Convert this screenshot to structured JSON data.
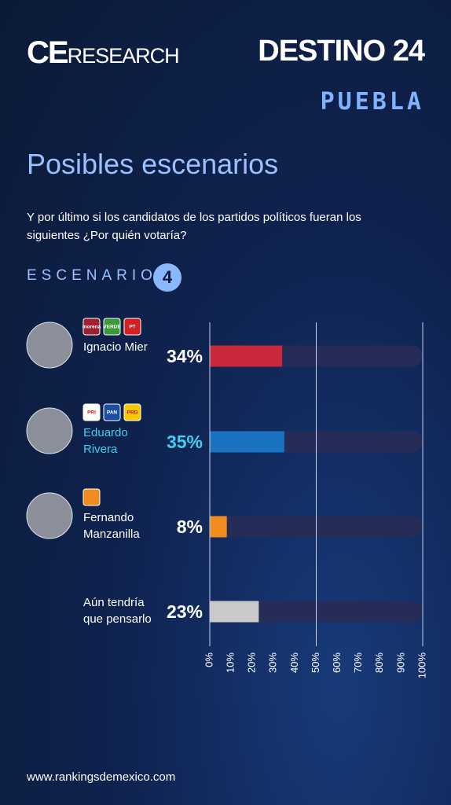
{
  "header": {
    "brand_bold": "CE",
    "brand_light": "RESEARCH",
    "campaign": "DESTINO 24",
    "region": "PUEBLA"
  },
  "chart_data": {
    "type": "bar",
    "orientation": "horizontal",
    "title": "Posibles escenarios",
    "subtitle": "Y por último si los candidatos de los partidos políticos fueran los siguientes ¿Por quién votaría?",
    "badge_label": "ESCENARIO",
    "badge_number": 4,
    "categories": [
      "Ignacio Mier",
      "Eduardo Rivera",
      "Fernando Manzanilla",
      "Aún tendría que pensarlo"
    ],
    "values": [
      34,
      35,
      8,
      23
    ],
    "value_labels": [
      "34%",
      "35%",
      "8%",
      "23%"
    ],
    "colors": [
      "#c8283a",
      "#1a73c0",
      "#f08c1e",
      "#c9c9c9"
    ],
    "label_colors": [
      "#ffffff",
      "#3fd0f0",
      "#ffffff",
      "#ffffff"
    ],
    "track_color": "#262c58",
    "parties": [
      [
        {
          "label": "morena",
          "color": "#a02030"
        },
        {
          "label": "VERDE",
          "color": "#3a9a3a"
        },
        {
          "label": "PT",
          "color": "#d42020"
        }
      ],
      [
        {
          "label": "PRI",
          "color": "#ffffff"
        },
        {
          "label": "PAN",
          "color": "#1a4fa0"
        },
        {
          "label": "PRD",
          "color": "#f5c800"
        }
      ],
      [
        {
          "color": "#f08c1e"
        }
      ],
      []
    ],
    "xlim": [
      0,
      100
    ],
    "xticks": [
      {
        "value": 0,
        "label": "0%"
      },
      {
        "value": 10,
        "label": "10%"
      },
      {
        "value": 20,
        "label": "20%"
      },
      {
        "value": 30,
        "label": "30%"
      },
      {
        "value": 40,
        "label": "40%"
      },
      {
        "value": 50,
        "label": "50%"
      },
      {
        "value": 60,
        "label": "60%"
      },
      {
        "value": 70,
        "label": "70%"
      },
      {
        "value": 80,
        "label": "80%"
      },
      {
        "value": 90,
        "label": "90%"
      },
      {
        "value": 100,
        "label": "100%"
      }
    ],
    "gridlines": [
      0,
      50,
      100
    ]
  },
  "footer": "www.rankingsdemexico.com"
}
